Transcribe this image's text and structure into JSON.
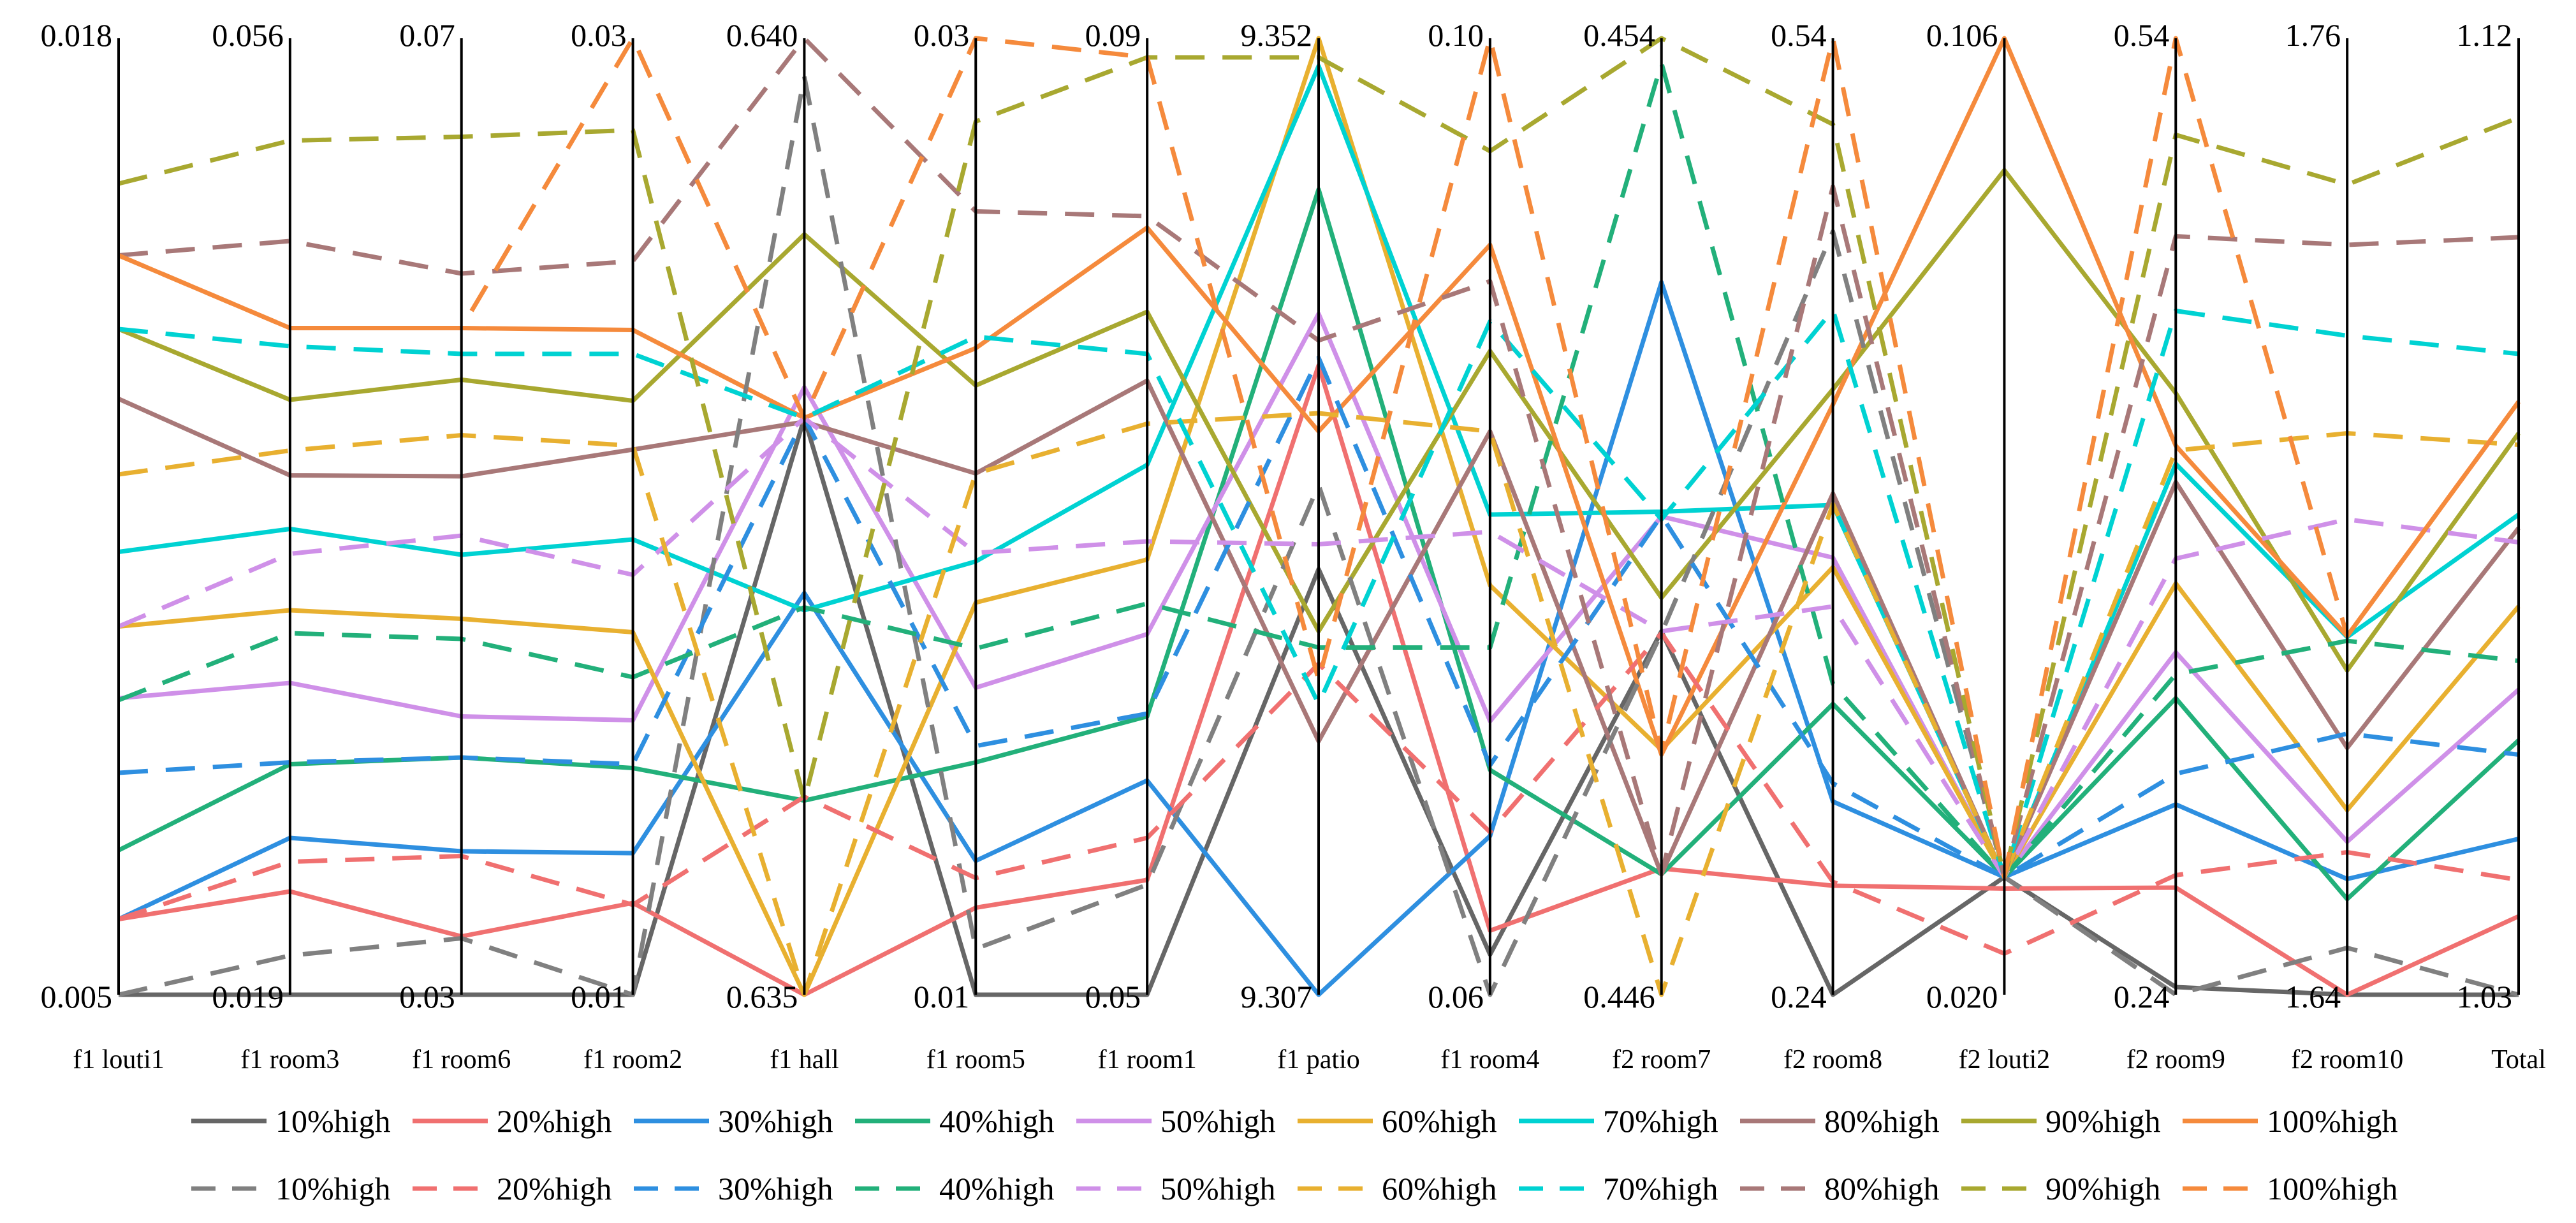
{
  "chart_data": {
    "type": "parallel-coordinates",
    "title": "",
    "axes": [
      {
        "label": "f1 louti1",
        "min": "0.005",
        "max": "0.018"
      },
      {
        "label": "f1 room3",
        "min": "0.019",
        "max": "0.056"
      },
      {
        "label": "f1 room6",
        "min": "0.03",
        "max": "0.07"
      },
      {
        "label": "f1 room2",
        "min": "0.01",
        "max": "0.03"
      },
      {
        "label": "f1 hall",
        "min": "0.635",
        "max": "0.640"
      },
      {
        "label": "f1 room5",
        "min": "0.01",
        "max": "0.03"
      },
      {
        "label": "f1 room1",
        "min": "0.05",
        "max": "0.09"
      },
      {
        "label": "f1 patio",
        "min": "9.307",
        "max": "9.352"
      },
      {
        "label": "f1 room4",
        "min": "0.06",
        "max": "0.10"
      },
      {
        "label": "f2 room7",
        "min": "0.446",
        "max": "0.454"
      },
      {
        "label": "f2 room8",
        "min": "0.24",
        "max": "0.54"
      },
      {
        "label": "f2 louti2",
        "min": "0.020",
        "max": "0.106"
      },
      {
        "label": "f2 room9",
        "min": "0.24",
        "max": "0.54"
      },
      {
        "label": "f2 room10",
        "min": "1.64",
        "max": "1.76"
      },
      {
        "label": "Total",
        "min": "1.03",
        "max": "1.12"
      }
    ],
    "series": [
      {
        "name": "10%high",
        "group": "solid",
        "style": "solid",
        "color": "#666666",
        "values": [
          0.0,
          0.0,
          0.0,
          0.0,
          0.603,
          0.0,
          0.0,
          0.445,
          0.042,
          0.38,
          0.0,
          0.123,
          0.008,
          0.0,
          0.0
        ]
      },
      {
        "name": "20%high",
        "group": "solid",
        "style": "solid",
        "color": "#F07070",
        "values": [
          0.079,
          0.108,
          0.061,
          0.096,
          0.0,
          0.091,
          0.12,
          0.658,
          0.067,
          0.132,
          0.114,
          0.111,
          0.112,
          0.0,
          0.082
        ]
      },
      {
        "name": "30%high",
        "group": "solid",
        "style": "solid",
        "color": "#2E8FE0",
        "values": [
          0.079,
          0.164,
          0.15,
          0.148,
          0.42,
          0.14,
          0.224,
          0.0,
          0.166,
          0.745,
          0.202,
          0.123,
          0.199,
          0.121,
          0.163
        ]
      },
      {
        "name": "40%high",
        "group": "solid",
        "style": "solid",
        "color": "#22B07A",
        "values": [
          0.151,
          0.241,
          0.248,
          0.237,
          0.203,
          0.243,
          0.291,
          0.842,
          0.235,
          0.126,
          0.304,
          0.123,
          0.31,
          0.1,
          0.266
        ]
      },
      {
        "name": "50%high",
        "group": "solid",
        "style": "solid",
        "color": "#CF90E8",
        "values": [
          0.31,
          0.326,
          0.291,
          0.287,
          0.635,
          0.321,
          0.377,
          0.712,
          0.286,
          0.5,
          0.457,
          0.123,
          0.358,
          0.16,
          0.319
        ]
      },
      {
        "name": "60%high",
        "group": "solid",
        "style": "solid",
        "color": "#E8B030",
        "values": [
          0.385,
          0.402,
          0.393,
          0.379,
          0.0,
          0.41,
          0.455,
          1.0,
          0.428,
          0.256,
          0.447,
          0.123,
          0.43,
          0.193,
          0.406
        ]
      },
      {
        "name": "70%high",
        "group": "solid",
        "style": "solid",
        "color": "#00D2D2",
        "values": [
          0.463,
          0.487,
          0.46,
          0.476,
          0.402,
          0.453,
          0.554,
          0.971,
          0.502,
          0.505,
          0.512,
          0.123,
          0.555,
          0.374,
          0.502
        ]
      },
      {
        "name": "80%high",
        "group": "solid",
        "style": "solid",
        "color": "#A87878",
        "values": [
          0.623,
          0.543,
          0.542,
          0.57,
          0.599,
          0.545,
          0.642,
          0.265,
          0.589,
          0.126,
          0.524,
          0.123,
          0.536,
          0.258,
          0.488
        ]
      },
      {
        "name": "90%high",
        "group": "solid",
        "style": "solid",
        "color": "#A8A830",
        "values": [
          0.696,
          0.622,
          0.643,
          0.621,
          0.795,
          0.637,
          0.714,
          0.38,
          0.673,
          0.415,
          0.633,
          0.862,
          0.629,
          0.339,
          0.587
        ]
      },
      {
        "name": "100%high",
        "group": "solid",
        "style": "solid",
        "color": "#F58A3C",
        "values": [
          0.773,
          0.697,
          0.697,
          0.695,
          0.603,
          0.676,
          0.802,
          0.589,
          0.784,
          0.251,
          0.617,
          1.0,
          0.574,
          0.375,
          0.62
        ]
      },
      {
        "name": "10%high",
        "group": "dashed",
        "style": "dashed",
        "color": "#808080",
        "values": [
          0.0,
          0.041,
          0.059,
          0.0,
          0.96,
          0.048,
          0.115,
          0.533,
          0.0,
          0.378,
          0.798,
          0.123,
          0.0,
          0.049,
          0.0
        ]
      },
      {
        "name": "20%high",
        "group": "dashed",
        "style": "dashed",
        "color": "#F07070",
        "values": [
          0.079,
          0.139,
          0.145,
          0.094,
          0.207,
          0.122,
          0.164,
          0.346,
          0.17,
          0.378,
          0.118,
          0.043,
          0.125,
          0.149,
          0.12
        ]
      },
      {
        "name": "30%high",
        "group": "dashed",
        "style": "dashed",
        "color": "#2E8FE0",
        "values": [
          0.232,
          0.243,
          0.248,
          0.241,
          0.603,
          0.26,
          0.294,
          0.666,
          0.24,
          0.501,
          0.221,
          0.123,
          0.231,
          0.273,
          0.251
        ]
      },
      {
        "name": "40%high",
        "group": "dashed",
        "style": "dashed",
        "color": "#22B07A",
        "values": [
          0.308,
          0.378,
          0.372,
          0.332,
          0.405,
          0.362,
          0.409,
          0.363,
          0.363,
          0.974,
          0.325,
          0.123,
          0.335,
          0.37,
          0.349
        ]
      },
      {
        "name": "50%high",
        "group": "dashed",
        "style": "dashed",
        "color": "#CF90E8",
        "values": [
          0.385,
          0.461,
          0.48,
          0.439,
          0.603,
          0.462,
          0.474,
          0.471,
          0.484,
          0.38,
          0.406,
          0.123,
          0.456,
          0.497,
          0.473
        ]
      },
      {
        "name": "60%high",
        "group": "dashed",
        "style": "dashed",
        "color": "#E8B030",
        "values": [
          0.544,
          0.569,
          0.585,
          0.574,
          0.0,
          0.545,
          0.597,
          0.608,
          0.589,
          0.0,
          0.513,
          0.123,
          0.569,
          0.587,
          0.575
        ]
      },
      {
        "name": "70%high",
        "group": "dashed",
        "style": "dashed",
        "color": "#00D2D2",
        "values": [
          0.696,
          0.678,
          0.67,
          0.67,
          0.603,
          0.688,
          0.67,
          0.304,
          0.704,
          0.497,
          0.716,
          0.123,
          0.715,
          0.689,
          0.67
        ]
      },
      {
        "name": "80%high",
        "group": "dashed",
        "style": "dashed",
        "color": "#A87878",
        "values": [
          0.773,
          0.788,
          0.754,
          0.767,
          1.0,
          0.819,
          0.814,
          0.684,
          0.746,
          0.126,
          0.845,
          0.123,
          0.793,
          0.784,
          0.792
        ]
      },
      {
        "name": "90%high",
        "group": "dashed",
        "style": "dashed",
        "color": "#A8A830",
        "values": [
          0.848,
          0.893,
          0.897,
          0.904,
          0.203,
          0.913,
          0.98,
          0.98,
          0.882,
          1.0,
          0.91,
          0.123,
          0.899,
          0.847,
          0.917
        ]
      },
      {
        "name": "100%high",
        "group": "dashed",
        "style": "dashed",
        "color": "#F58A3C",
        "values": [
          0.773,
          0.697,
          0.697,
          1.0,
          0.603,
          1.0,
          0.98,
          0.329,
          1.0,
          0.253,
          1.0,
          0.123,
          1.0,
          0.375,
          0.62
        ]
      }
    ],
    "legend": {
      "placement": "bottom",
      "rows": 2
    },
    "note": "values are normalized 0-1 between each axis's min and max tick labels; estimated from line positions"
  }
}
